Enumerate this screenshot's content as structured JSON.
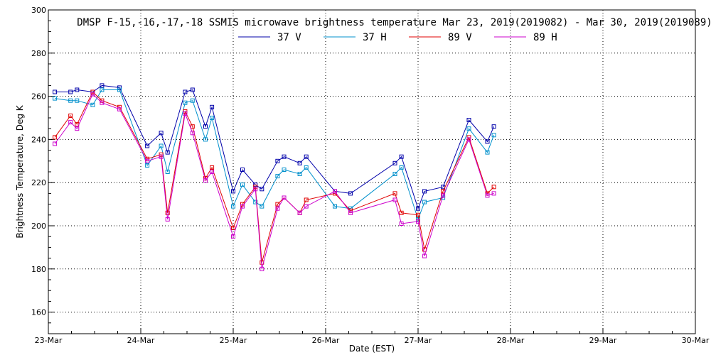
{
  "chart_data": {
    "type": "line",
    "title": "DMSP F-15,-16,-17,-18 SSMIS microwave brightness temperature Mar 23, 2019(2019082) - Mar 30, 2019(2019089)",
    "xlabel": "Date (EST)",
    "ylabel": "Brightness Temperature, Deg K",
    "xlim": [
      0,
      7
    ],
    "ylim": [
      150,
      300
    ],
    "x_tick_values": [
      0,
      1,
      2,
      3,
      4,
      5,
      6,
      7
    ],
    "x_tick_labels": [
      "23-Mar",
      "24-Mar",
      "25-Mar",
      "26-Mar",
      "27-Mar",
      "28-Mar",
      "29-Mar",
      "30-Mar"
    ],
    "y_ticks": [
      160,
      180,
      200,
      220,
      240,
      260,
      280,
      300
    ],
    "grid": true,
    "legend_position": "top-center",
    "x": [
      0.07,
      0.24,
      0.31,
      0.48,
      0.58,
      0.77,
      1.07,
      1.22,
      1.29,
      1.48,
      1.56,
      1.7,
      1.77,
      2.0,
      2.1,
      2.24,
      2.31,
      2.48,
      2.55,
      2.72,
      2.79,
      3.1,
      3.27,
      3.75,
      3.82,
      4.0,
      4.07,
      4.27,
      4.55,
      4.75,
      4.82
    ],
    "series": [
      {
        "name": "37 V",
        "color": "#0000aa",
        "values": [
          262,
          262,
          263,
          262,
          265,
          264,
          237,
          243,
          234,
          262,
          263,
          246,
          255,
          216,
          226,
          219,
          217,
          230,
          232,
          229,
          232,
          216,
          215,
          229,
          232,
          208,
          216,
          218,
          249,
          239,
          246
        ]
      },
      {
        "name": "37 H",
        "color": "#0090cc",
        "values": [
          259,
          258,
          258,
          256,
          263,
          263,
          228,
          237,
          225,
          257,
          258,
          240,
          250,
          209,
          219,
          211,
          209,
          223,
          226,
          224,
          227,
          209,
          208,
          224,
          227,
          203,
          211,
          213,
          245,
          234,
          242
        ]
      },
      {
        "name": "89 V",
        "color": "#e00000",
        "values": [
          241,
          251,
          247,
          262,
          258,
          255,
          231,
          233,
          206,
          253,
          246,
          222,
          227,
          199,
          210,
          218,
          183,
          210,
          213,
          206,
          212,
          215,
          207,
          215,
          206,
          205,
          189,
          216,
          241,
          215,
          218
        ]
      },
      {
        "name": "89 H",
        "color": "#cc00cc",
        "values": [
          238,
          248,
          245,
          261,
          257,
          254,
          230,
          232,
          203,
          252,
          243,
          221,
          225,
          195,
          209,
          217,
          180,
          208,
          213,
          206,
          209,
          216,
          206,
          212,
          201,
          202,
          186,
          214,
          240,
          214,
          215
        ]
      }
    ]
  }
}
